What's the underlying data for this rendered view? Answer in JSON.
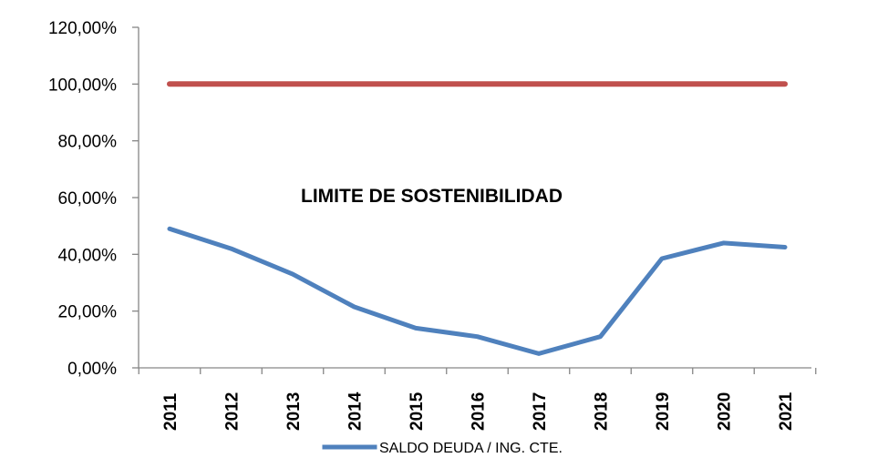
{
  "chart_data": {
    "type": "line",
    "title": "",
    "xlabel": "",
    "ylabel": "",
    "categories": [
      "2011",
      "2012",
      "2013",
      "2014",
      "2015",
      "2016",
      "2017",
      "2018",
      "2019",
      "2020",
      "2021"
    ],
    "y_ticks": [
      "0,00%",
      "20,00%",
      "40,00%",
      "60,00%",
      "80,00%",
      "100,00%",
      "120,00%"
    ],
    "ylim": [
      0,
      120
    ],
    "grid": false,
    "legend_position": "bottom",
    "series": [
      {
        "name": "SALDO DEUDA / ING.  CTE.",
        "color": "#4f81bd",
        "values": [
          49,
          42,
          33,
          21.5,
          14,
          11,
          5,
          11,
          38.5,
          44,
          42.5
        ]
      },
      {
        "color": "#c0504d",
        "values": [
          100,
          100,
          100,
          100,
          100,
          100,
          100,
          100,
          100,
          100,
          100
        ]
      }
    ],
    "annotations": [
      {
        "text": "LIMITE DE SOSTENIBILIDAD"
      }
    ]
  }
}
